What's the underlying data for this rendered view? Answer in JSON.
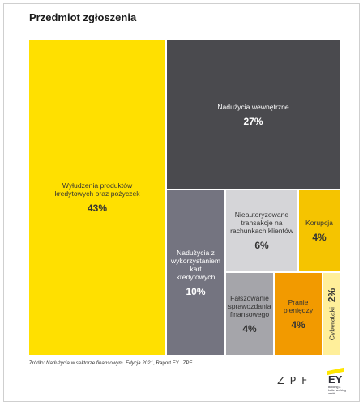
{
  "title": "Przedmiot zgłoszenia",
  "source": {
    "prefix": "Źródło: ",
    "italic": "Nadużycia w sektorze finansowym. Edycja 2021",
    "suffix": ", Raport EY i ZPF."
  },
  "logos": {
    "zpf": "ZPF",
    "ey": "EY",
    "ey_tagline": "Building a better working world"
  },
  "chart_data": {
    "type": "treemap",
    "title": "Przedmiot zgłoszenia",
    "items": [
      {
        "label": "Wyłudzenia produktów kredytowych oraz pożyczek",
        "value": 43,
        "display": "43%",
        "color": "#ffe000",
        "text_color": "#333333"
      },
      {
        "label": "Nadużycia wewnętrzne",
        "value": 27,
        "display": "27%",
        "color": "#4a4a4e",
        "text_color": "#ffffff"
      },
      {
        "label": "Nadużycia z wykorzystaniem kart kredytowych",
        "value": 10,
        "display": "10%",
        "color": "#747480",
        "text_color": "#ffffff"
      },
      {
        "label": "Nieautoryzowane transakcje na rachunkach klientów",
        "value": 6,
        "display": "6%",
        "color": "#d5d5d8",
        "text_color": "#333333"
      },
      {
        "label": "Korupcja",
        "value": 4,
        "display": "4%",
        "color": "#f5c400",
        "text_color": "#333333"
      },
      {
        "label": "Fałszowanie sprawozdania finansowego",
        "value": 4,
        "display": "4%",
        "color": "#a5a5aa",
        "text_color": "#333333"
      },
      {
        "label": "Pranie pieniędzy",
        "value": 4,
        "display": "4%",
        "color": "#f29a00",
        "text_color": "#333333"
      },
      {
        "label": "Cyberataki",
        "value": 2,
        "display": "2%",
        "color": "#ffef9a",
        "text_color": "#333333"
      }
    ]
  }
}
